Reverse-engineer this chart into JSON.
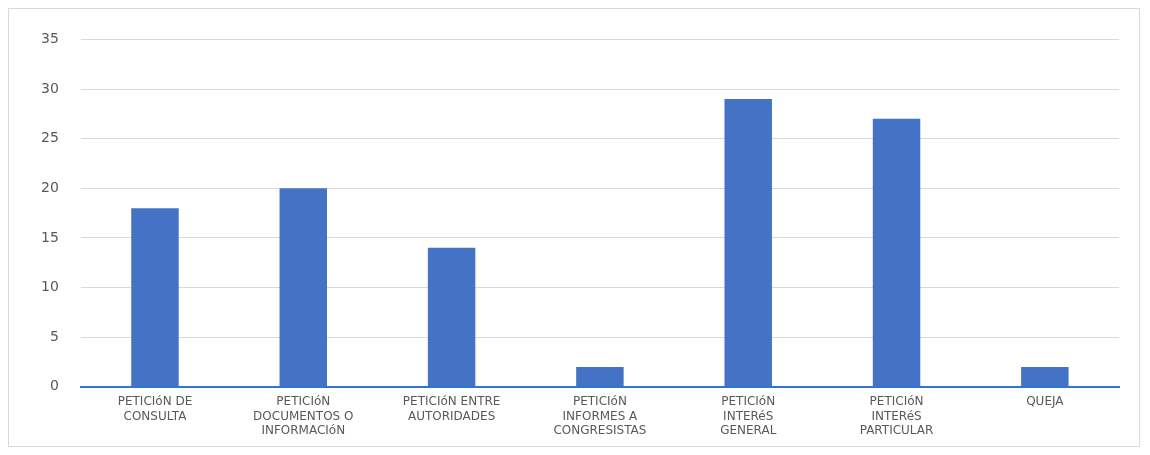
{
  "chart_data": {
    "type": "bar",
    "categories": [
      "PETICIóN DE CONSULTA",
      "PETICIóN DOCUMENTOS O INFORMACIóN",
      "PETICIóN ENTRE AUTORIDADES",
      "PETICIóN INFORMES A CONGRESISTAS",
      "PETICIóN INTERéS GENERAL",
      "PETICIóN INTERéS PARTICULAR",
      "QUEJA"
    ],
    "values": [
      18,
      20,
      14,
      2,
      29,
      27,
      2
    ],
    "color": "#4472c4",
    "ylim": [
      0,
      35
    ],
    "yticks": [
      0,
      5,
      10,
      15,
      20,
      25,
      30,
      35
    ],
    "grid": "y",
    "legend": false
  }
}
